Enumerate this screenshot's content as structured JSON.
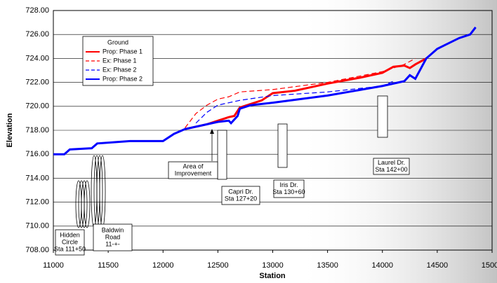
{
  "chart_data": {
    "type": "line",
    "xlabel": "Station",
    "ylabel": "Elevation",
    "legend_title": "Ground",
    "xlim": [
      11000,
      15000
    ],
    "xticks": [
      11000,
      11500,
      12000,
      12500,
      13000,
      13500,
      14000,
      14500,
      15000
    ],
    "ylim": [
      708,
      728
    ],
    "yticks": [
      {
        "value": 708,
        "label": "708.00"
      },
      {
        "value": 710,
        "label": "710.00"
      },
      {
        "value": 712,
        "label": "712.00"
      },
      {
        "value": 714,
        "label": "714.00"
      },
      {
        "value": 716,
        "label": "716.00"
      },
      {
        "value": 718,
        "label": "718.00"
      },
      {
        "value": 720,
        "label": "720.00"
      },
      {
        "value": 722,
        "label": "722.00"
      },
      {
        "value": 724,
        "label": "724.00"
      },
      {
        "value": 726,
        "label": "726.00"
      },
      {
        "value": 728,
        "label": "728.00"
      }
    ],
    "grid": true,
    "series": [
      {
        "name": "Prop: Phase 1",
        "color": "#ff0000",
        "dash": false,
        "width": 3,
        "x": [
          12200,
          12400,
          12600,
          12650,
          12700,
          12900,
          13000,
          13200,
          13500,
          13800,
          14000,
          14100,
          14200,
          14250,
          14300,
          14400
        ],
        "values": [
          718.1,
          718.5,
          719.1,
          719.2,
          719.9,
          720.5,
          721.1,
          721.3,
          721.9,
          722.4,
          722.8,
          723.3,
          723.4,
          723.2,
          723.5,
          724.0
        ]
      },
      {
        "name": "Ex: Phase 1",
        "color": "#ff0000",
        "dash": true,
        "width": 1.2,
        "x": [
          12200,
          12300,
          12400,
          12500,
          12600,
          12700,
          13000,
          13500,
          14000,
          14200,
          14300
        ],
        "values": [
          718.2,
          719.4,
          720.1,
          720.6,
          720.8,
          721.2,
          721.4,
          722.0,
          722.9,
          723.5,
          724.0
        ]
      },
      {
        "name": "Ex: Phase 2",
        "color": "#0000ff",
        "dash": true,
        "width": 1.2,
        "x": [
          12300,
          12400,
          12500,
          12600,
          12700,
          13000,
          13500,
          14000,
          14100
        ],
        "values": [
          718.6,
          719.5,
          720.1,
          720.3,
          720.5,
          720.9,
          721.2,
          721.7,
          722.1
        ]
      },
      {
        "name": "Prop: Phase 2",
        "color": "#0000ff",
        "dash": false,
        "width": 3,
        "x": [
          11000,
          11100,
          11150,
          11350,
          11400,
          11700,
          12000,
          12100,
          12200,
          12500,
          12600,
          12620,
          12680,
          12700,
          12800,
          13000,
          13500,
          14000,
          14200,
          14250,
          14300,
          14400,
          14500,
          14700,
          14800,
          14850
        ],
        "values": [
          716.0,
          716.0,
          716.4,
          716.5,
          716.9,
          717.1,
          717.1,
          717.7,
          718.1,
          718.7,
          718.8,
          718.6,
          719.2,
          719.8,
          720.1,
          720.3,
          720.9,
          721.7,
          722.1,
          722.6,
          722.3,
          724.0,
          724.8,
          725.7,
          726.0,
          726.6
        ]
      }
    ],
    "annotations": [
      {
        "lines": [
          "Hidden",
          "Circle",
          "Sta 111+50"
        ]
      },
      {
        "lines": [
          "Baldwin",
          "Road",
          "11-+-"
        ]
      },
      {
        "lines": [
          "Area of",
          "Improvement"
        ]
      },
      {
        "lines": [
          "Capri Dr.",
          "Sta 127+20"
        ]
      },
      {
        "lines": [
          "Iris Dr.",
          "Sta 130+60"
        ]
      },
      {
        "lines": [
          "Laurel Dr.",
          "Sta 142+00"
        ]
      }
    ]
  }
}
